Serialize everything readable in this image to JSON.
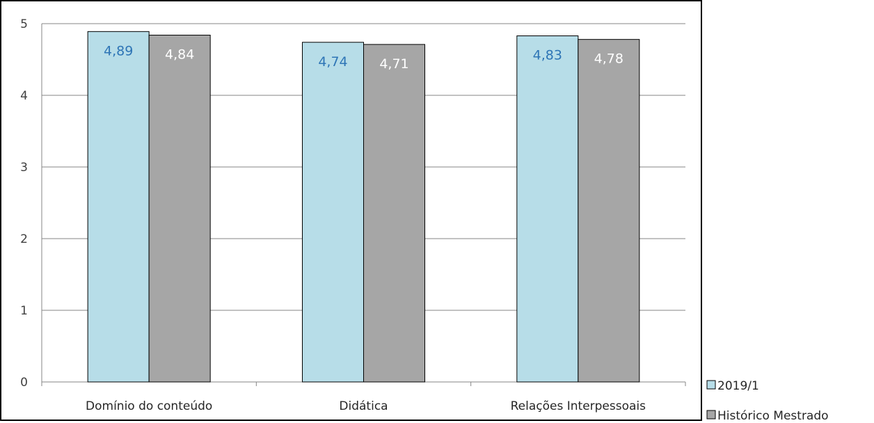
{
  "chart_data": {
    "type": "bar",
    "categories": [
      "Domínio do conteúdo",
      "Didática",
      "Relações Interpessoais"
    ],
    "series": [
      {
        "name": "2019/1",
        "values": [
          4.89,
          4.74,
          4.83
        ],
        "labels": [
          "4,89",
          "4,74",
          "4,83"
        ],
        "color": "#b7dde8",
        "label_color": "#2e75b6"
      },
      {
        "name": "Histórico Mestrado",
        "values": [
          4.84,
          4.71,
          4.78
        ],
        "labels": [
          "4,84",
          "4,71",
          "4,78"
        ],
        "color": "#a6a6a6",
        "label_color": "#ffffff"
      }
    ],
    "yticks": [
      "0",
      "1",
      "2",
      "3",
      "4",
      "5"
    ],
    "ylim": [
      0,
      5
    ],
    "grid": true,
    "legend_position": "bottom-right",
    "title": "",
    "xlabel": "",
    "ylabel": ""
  }
}
